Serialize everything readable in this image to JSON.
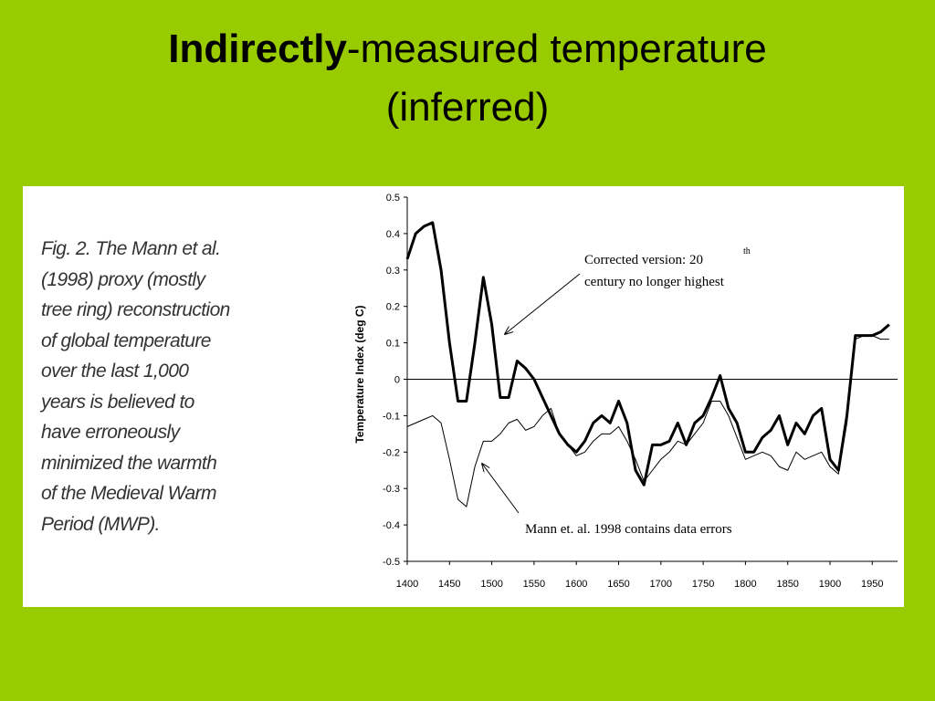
{
  "slide": {
    "title_bold": "Indirectly",
    "title_rest": "-measured temperature",
    "title_line2": "(inferred)"
  },
  "caption": [
    "Fig. 2. The Mann et al.",
    "(1998) proxy (mostly",
    "tree ring) reconstruction",
    "of global temperature",
    "over the last 1,000",
    "years is believed to",
    "have erroneously",
    "minimized the warmth",
    "of the Medieval Warm",
    "Period (MWP)."
  ],
  "chart_data": {
    "type": "line",
    "ylabel": "Temperature Index (deg C)",
    "annotations": [
      "Corrected version: 20",
      "th",
      "century no longer highest",
      "Mann et. al. 1998 contains data errors"
    ],
    "x": [
      1400,
      1410,
      1420,
      1430,
      1440,
      1450,
      1460,
      1470,
      1480,
      1490,
      1500,
      1510,
      1520,
      1530,
      1540,
      1550,
      1560,
      1570,
      1580,
      1590,
      1600,
      1610,
      1620,
      1630,
      1640,
      1650,
      1660,
      1670,
      1680,
      1690,
      1700,
      1710,
      1720,
      1730,
      1740,
      1750,
      1760,
      1770,
      1780,
      1790,
      1800,
      1810,
      1820,
      1830,
      1840,
      1850,
      1860,
      1870,
      1880,
      1890,
      1900,
      1910,
      1920,
      1930,
      1940,
      1950,
      1960,
      1970
    ],
    "series": [
      {
        "color": "#000000",
        "width": 3,
        "values": [
          0.33,
          0.4,
          0.42,
          0.43,
          0.3,
          0.1,
          -0.06,
          -0.06,
          0.1,
          0.28,
          0.15,
          -0.05,
          -0.05,
          0.05,
          0.03,
          0.0,
          -0.05,
          -0.1,
          -0.15,
          -0.18,
          -0.2,
          -0.17,
          -0.12,
          -0.1,
          -0.12,
          -0.06,
          -0.12,
          -0.25,
          -0.29,
          -0.18,
          -0.18,
          -0.17,
          -0.12,
          -0.18,
          -0.12,
          -0.1,
          -0.05,
          0.01,
          -0.08,
          -0.12,
          -0.2,
          -0.2,
          -0.16,
          -0.14,
          -0.1,
          -0.18,
          -0.12,
          -0.15,
          -0.1,
          -0.08,
          -0.22,
          -0.25,
          -0.1,
          0.12,
          0.12,
          0.12,
          0.13,
          0.15
        ]
      },
      {
        "color": "#000000",
        "width": 1,
        "values": [
          -0.13,
          -0.12,
          -0.11,
          -0.1,
          -0.12,
          -0.22,
          -0.33,
          -0.35,
          -0.24,
          -0.17,
          -0.17,
          -0.15,
          -0.12,
          -0.11,
          -0.14,
          -0.13,
          -0.1,
          -0.08,
          -0.15,
          -0.18,
          -0.21,
          -0.2,
          -0.17,
          -0.15,
          -0.15,
          -0.13,
          -0.17,
          -0.22,
          -0.28,
          -0.25,
          -0.22,
          -0.2,
          -0.17,
          -0.18,
          -0.15,
          -0.12,
          -0.06,
          -0.06,
          -0.1,
          -0.16,
          -0.22,
          -0.21,
          -0.2,
          -0.21,
          -0.24,
          -0.25,
          -0.2,
          -0.22,
          -0.21,
          -0.2,
          -0.24,
          -0.26,
          -0.12,
          0.11,
          0.12,
          0.12,
          0.11,
          0.11
        ]
      }
    ],
    "xlim": [
      1400,
      1980
    ],
    "ylim": [
      -0.5,
      0.5
    ],
    "xticks": [
      1400,
      1450,
      1500,
      1550,
      1600,
      1650,
      1700,
      1750,
      1800,
      1850,
      1900,
      1950
    ],
    "yticks": [
      0.5,
      0.4,
      0.3,
      0.2,
      0.1,
      0,
      -0.1,
      -0.2,
      -0.3,
      -0.4,
      -0.5
    ]
  }
}
